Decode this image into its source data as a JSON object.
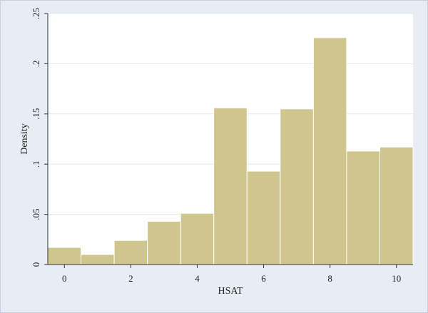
{
  "chart_data": {
    "type": "bar",
    "xlabel": "HSAT",
    "ylabel": "Density",
    "x_ticks": [
      "0",
      "2",
      "4",
      "6",
      "8",
      "10"
    ],
    "y_ticks": [
      "0",
      ".05",
      ".1",
      ".15",
      ".2",
      ".25"
    ],
    "xlim": [
      -0.5,
      10.5
    ],
    "ylim": [
      0,
      0.25
    ],
    "grid": "horizontal",
    "bars": [
      {
        "x": 0,
        "value": 0.017
      },
      {
        "x": 1,
        "value": 0.01
      },
      {
        "x": 2,
        "value": 0.024
      },
      {
        "x": 3,
        "value": 0.043
      },
      {
        "x": 4,
        "value": 0.051
      },
      {
        "x": 5,
        "value": 0.156
      },
      {
        "x": 6,
        "value": 0.093
      },
      {
        "x": 7,
        "value": 0.155
      },
      {
        "x": 8,
        "value": 0.226
      },
      {
        "x": 9,
        "value": 0.113
      },
      {
        "x": 10,
        "value": 0.117
      }
    ],
    "colors": {
      "bar_fill": "#cfc68e",
      "bar_edge": "#ffffff",
      "background": "#e8edf5",
      "plot_area": "#ffffff",
      "grid": "#e3e7ee",
      "axis": "#333333"
    }
  }
}
